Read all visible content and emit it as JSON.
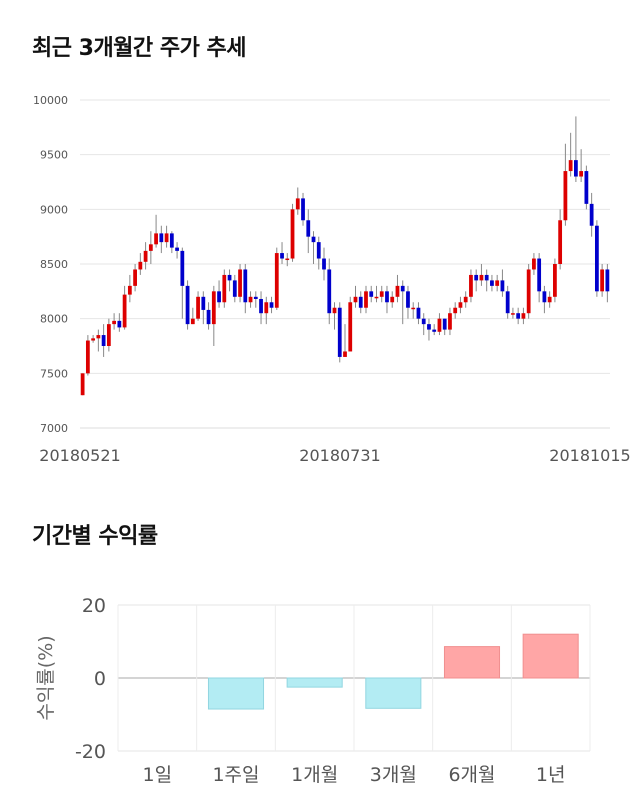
{
  "section1": {
    "title": "최근 3개월간 주가 추세"
  },
  "section2": {
    "title": "기간별 수익률"
  },
  "chart_data": [
    {
      "type": "candlestick",
      "title": "최근 3개월간 주가 추세",
      "ylim": [
        7000,
        10000
      ],
      "yticks": [
        7000,
        7500,
        8000,
        8500,
        9000,
        9500,
        10000
      ],
      "xtick_labels": [
        "20180521",
        "20180731",
        "20181015"
      ],
      "grid": true,
      "up_color": "#dd0000",
      "down_color": "#0000cc",
      "candles": [
        [
          7300,
          7500,
          7300,
          7500
        ],
        [
          7500,
          7800,
          7480,
          7850
        ],
        [
          7800,
          7820,
          7780,
          7850
        ],
        [
          7820,
          7850,
          7700,
          7900
        ],
        [
          7850,
          7750,
          7650,
          7950
        ],
        [
          7750,
          7950,
          7700,
          8000
        ],
        [
          7950,
          7980,
          7900,
          8050
        ],
        [
          7980,
          7920,
          7880,
          8050
        ],
        [
          7920,
          8220,
          7900,
          8300
        ],
        [
          8220,
          8300,
          8150,
          8400
        ],
        [
          8300,
          8450,
          8250,
          8500
        ],
        [
          8450,
          8520,
          8400,
          8600
        ],
        [
          8520,
          8620,
          8450,
          8700
        ],
        [
          8620,
          8680,
          8500,
          8800
        ],
        [
          8680,
          8780,
          8650,
          8950
        ],
        [
          8780,
          8700,
          8600,
          8850
        ],
        [
          8700,
          8780,
          8650,
          8850
        ],
        [
          8780,
          8650,
          8600,
          8800
        ],
        [
          8650,
          8620,
          8550,
          8700
        ],
        [
          8620,
          8300,
          8000,
          8650
        ],
        [
          8300,
          7950,
          7900,
          8350
        ],
        [
          7950,
          8000,
          7950,
          8100
        ],
        [
          8000,
          8200,
          7980,
          8250
        ],
        [
          8200,
          8080,
          7950,
          8250
        ],
        [
          8080,
          7950,
          7900,
          8150
        ],
        [
          7950,
          8250,
          7750,
          8300
        ],
        [
          8250,
          8150,
          8100,
          8350
        ],
        [
          8150,
          8400,
          8100,
          8450
        ],
        [
          8400,
          8350,
          8250,
          8450
        ],
        [
          8350,
          8200,
          8150,
          8400
        ],
        [
          8200,
          8450,
          8150,
          8500
        ],
        [
          8450,
          8150,
          8050,
          8500
        ],
        [
          8150,
          8200,
          8100,
          8250
        ],
        [
          8200,
          8180,
          8100,
          8250
        ],
        [
          8180,
          8050,
          7950,
          8250
        ],
        [
          8050,
          8150,
          7950,
          8200
        ],
        [
          8150,
          8100,
          8050,
          8200
        ],
        [
          8100,
          8600,
          8080,
          8650
        ],
        [
          8600,
          8550,
          8500,
          8700
        ],
        [
          8550,
          8550,
          8480,
          8600
        ],
        [
          8550,
          9000,
          8520,
          9050
        ],
        [
          9000,
          9100,
          8950,
          9200
        ],
        [
          9100,
          8900,
          8850,
          9150
        ],
        [
          8900,
          8750,
          8600,
          9000
        ],
        [
          8750,
          8700,
          8500,
          8800
        ],
        [
          8700,
          8550,
          8450,
          8750
        ],
        [
          8550,
          8450,
          8350,
          8650
        ],
        [
          8450,
          8050,
          7950,
          8550
        ],
        [
          8050,
          8100,
          7900,
          8150
        ],
        [
          8100,
          7650,
          7600,
          8150
        ],
        [
          7650,
          7700,
          7650,
          7950
        ],
        [
          7700,
          8150,
          7700,
          8200
        ],
        [
          8150,
          8200,
          8100,
          8300
        ],
        [
          8200,
          8100,
          8050,
          8250
        ],
        [
          8100,
          8250,
          8050,
          8300
        ],
        [
          8250,
          8200,
          8150,
          8300
        ],
        [
          8200,
          8200,
          8150,
          8300
        ],
        [
          8200,
          8250,
          8150,
          8300
        ],
        [
          8250,
          8150,
          8050,
          8300
        ],
        [
          8150,
          8200,
          8100,
          8250
        ],
        [
          8200,
          8300,
          8150,
          8400
        ],
        [
          8300,
          8250,
          7950,
          8350
        ],
        [
          8250,
          8100,
          8000,
          8300
        ],
        [
          8100,
          8100,
          8000,
          8150
        ],
        [
          8100,
          8000,
          7950,
          8150
        ],
        [
          8000,
          7950,
          7850,
          8050
        ],
        [
          7950,
          7900,
          7800,
          8000
        ],
        [
          7900,
          7880,
          7850,
          7950
        ],
        [
          7880,
          8000,
          7850,
          8050
        ],
        [
          8000,
          7900,
          7850,
          8000
        ],
        [
          7900,
          8050,
          7850,
          8100
        ],
        [
          8050,
          8100,
          8000,
          8150
        ],
        [
          8100,
          8150,
          8050,
          8200
        ],
        [
          8150,
          8200,
          8100,
          8250
        ],
        [
          8200,
          8400,
          8150,
          8450
        ],
        [
          8400,
          8350,
          8250,
          8450
        ],
        [
          8350,
          8400,
          8300,
          8500
        ],
        [
          8400,
          8350,
          8250,
          8450
        ],
        [
          8350,
          8300,
          8250,
          8400
        ],
        [
          8300,
          8350,
          8250,
          8400
        ],
        [
          8350,
          8250,
          8200,
          8450
        ],
        [
          8250,
          8050,
          8000,
          8300
        ],
        [
          8050,
          8050,
          8000,
          8100
        ],
        [
          8050,
          8000,
          7950,
          8100
        ],
        [
          8000,
          8050,
          7950,
          8100
        ],
        [
          8050,
          8450,
          8000,
          8500
        ],
        [
          8450,
          8550,
          8400,
          8600
        ],
        [
          8550,
          8250,
          8150,
          8600
        ],
        [
          8250,
          8150,
          8050,
          8300
        ],
        [
          8150,
          8200,
          8100,
          8250
        ],
        [
          8200,
          8500,
          8150,
          8550
        ],
        [
          8500,
          8900,
          8450,
          9000
        ],
        [
          8900,
          9350,
          8850,
          9600
        ],
        [
          9350,
          9450,
          9300,
          9700
        ],
        [
          9450,
          9300,
          9250,
          9850
        ],
        [
          9300,
          9350,
          9250,
          9550
        ],
        [
          9350,
          9050,
          9000,
          9400
        ],
        [
          9050,
          8850,
          8750,
          9150
        ],
        [
          8850,
          8250,
          8200,
          8900
        ],
        [
          8250,
          8450,
          8200,
          8500
        ],
        [
          8450,
          8250,
          8150,
          8500
        ]
      ]
    },
    {
      "type": "bar",
      "title": "기간별 수익률",
      "categories": [
        "1일",
        "1주일",
        "1개월",
        "3개월",
        "6개월",
        "1년"
      ],
      "values": [
        0,
        -8.5,
        -2.5,
        -8.3,
        8.6,
        12
      ],
      "ylabel": "수익률(%)",
      "ylim": [
        -20,
        20
      ],
      "yticks": [
        -20,
        0,
        20
      ],
      "grid": true,
      "negative_color": "#b3ecf3",
      "positive_color": "#ffa6a6"
    }
  ]
}
